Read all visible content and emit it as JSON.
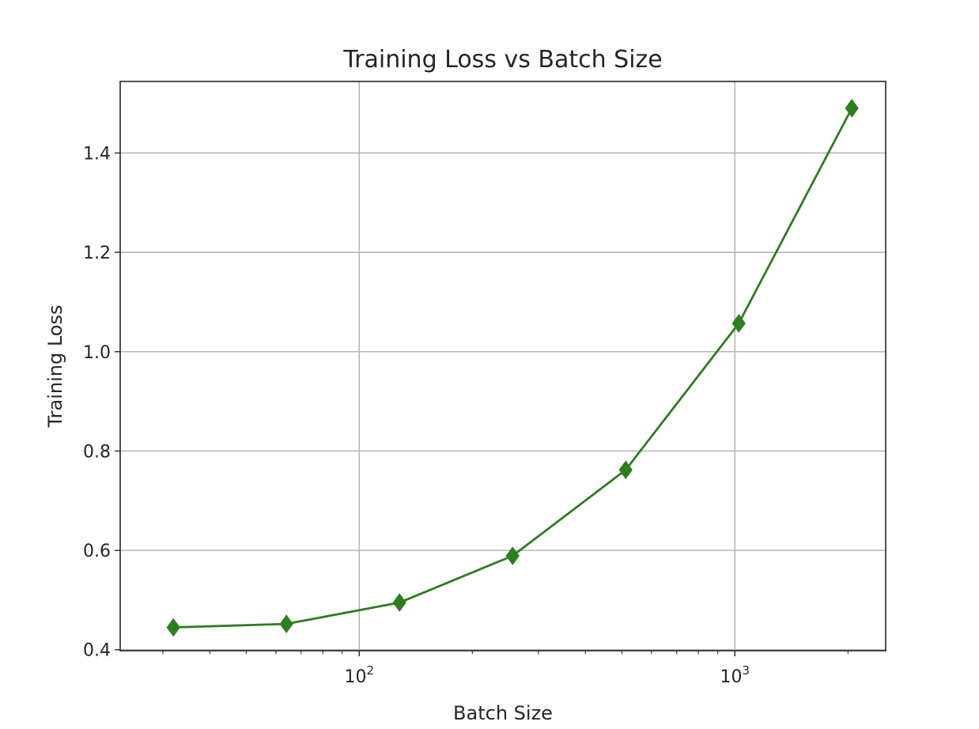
{
  "chart_data": {
    "type": "line",
    "title": "Training Loss vs Batch Size",
    "xlabel": "Batch Size",
    "ylabel": "Training Loss",
    "x_scale": "log",
    "xlim": [
      23.1,
      2520
    ],
    "ylim": [
      0.398,
      1.544
    ],
    "x_ticks": [
      {
        "value": 100,
        "base": "10",
        "exponent": "2"
      },
      {
        "value": 1000,
        "base": "10",
        "exponent": "3"
      }
    ],
    "y_ticks": [
      {
        "value": 0.4,
        "label": "0.4"
      },
      {
        "value": 0.6,
        "label": "0.6"
      },
      {
        "value": 0.8,
        "label": "0.8"
      },
      {
        "value": 1.0,
        "label": "1.0"
      },
      {
        "value": 1.2,
        "label": "1.2"
      },
      {
        "value": 1.4,
        "label": "1.4"
      }
    ],
    "grid": true,
    "series": [
      {
        "color": "#2e7d1f",
        "marker": "diamond",
        "x": [
          32,
          64,
          128,
          256,
          512,
          1024,
          2048
        ],
        "y": [
          0.445,
          0.452,
          0.495,
          0.589,
          0.762,
          1.057,
          1.49
        ]
      }
    ]
  }
}
